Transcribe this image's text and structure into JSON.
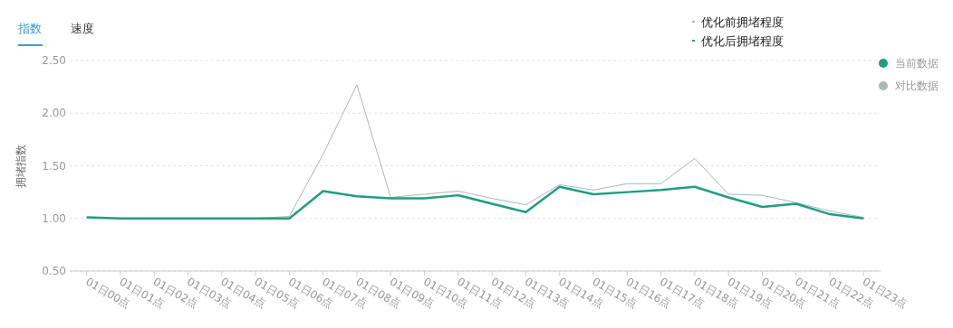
{
  "chart_data": {
    "type": "line",
    "ylabel": "拥堵指数",
    "categories": [
      "01日00点",
      "01日01点",
      "01日02点",
      "01日03点",
      "01日04点",
      "01日05点",
      "01日06点",
      "01日07点",
      "01日08点",
      "01日09点",
      "01日10点",
      "01日11点",
      "01日12点",
      "01日13点",
      "01日14点",
      "01日15点",
      "01日16点",
      "01日17点",
      "01日18点",
      "01日19点",
      "01日20点",
      "01日21点",
      "01日22点",
      "01日23点"
    ],
    "series": [
      {
        "name": "对比数据",
        "color": "#a9bab2",
        "values": [
          1.01,
          1.0,
          1.0,
          1.0,
          1.0,
          1.0,
          1.02,
          1.61,
          2.27,
          1.2,
          1.23,
          1.26,
          1.19,
          1.13,
          1.32,
          1.27,
          1.33,
          1.33,
          1.57,
          1.23,
          1.22,
          1.15,
          1.07,
          1.01
        ]
      },
      {
        "name": "当前数据",
        "color": "#1f9e80",
        "values": [
          1.01,
          1.0,
          1.0,
          1.0,
          1.0,
          1.0,
          1.0,
          1.26,
          1.21,
          1.19,
          1.19,
          1.22,
          1.14,
          1.06,
          1.3,
          1.23,
          1.25,
          1.27,
          1.3,
          1.2,
          1.11,
          1.14,
          1.04,
          1.0
        ]
      }
    ],
    "ylim": [
      0.5,
      2.5
    ],
    "yticks": [
      {
        "value": 0.5,
        "label": "0.50"
      },
      {
        "value": 1,
        "label": "1.00"
      },
      {
        "value": 1.5,
        "label": "1.50"
      },
      {
        "value": 2,
        "label": "2.00"
      },
      {
        "value": 2.5,
        "label": "2.50"
      }
    ],
    "grid": "y",
    "legend": "top right",
    "marker": "none",
    "line_style": "solid",
    "annotations": [
      "指数",
      "速度",
      "优化前拥堵程度",
      "优化后拥堵程度"
    ]
  }
}
